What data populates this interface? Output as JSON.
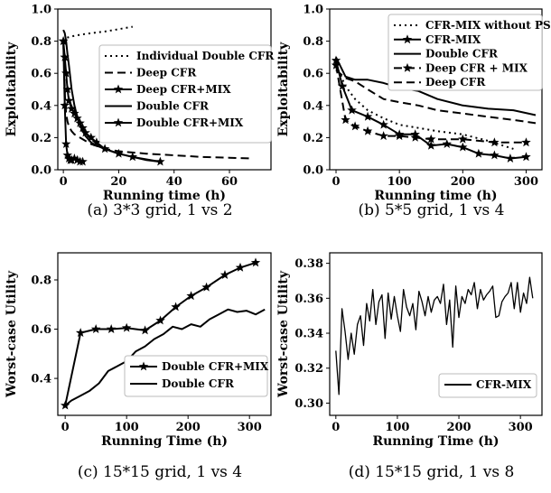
{
  "chart_data": [
    {
      "type": "line",
      "caption": "(a) 3*3 grid, 1 vs 2",
      "xlabel": "Running time (h)",
      "ylabel": "Exploitability",
      "xlim": [
        -2,
        75
      ],
      "ylim": [
        0,
        1.0
      ],
      "xticks": [
        "0",
        "20",
        "40",
        "60"
      ],
      "yticks": [
        "0.0",
        "0.2",
        "0.4",
        "0.6",
        "0.8",
        "1.0"
      ],
      "legend": "top-right",
      "series": [
        {
          "name": "Individual Double CFR",
          "style": "dotted",
          "x": [
            0,
            0.5,
            1,
            3,
            6,
            10,
            15,
            20,
            25
          ],
          "y": [
            0.8,
            0.81,
            0.82,
            0.83,
            0.84,
            0.85,
            0.86,
            0.875,
            0.89
          ]
        },
        {
          "name": "Deep CFR",
          "style": "dashed",
          "x": [
            0,
            0.3,
            0.6,
            1,
            1.5,
            2,
            3,
            4,
            6,
            8,
            10,
            15,
            20,
            30,
            40,
            50,
            60,
            68
          ],
          "y": [
            0.8,
            0.65,
            0.45,
            0.35,
            0.3,
            0.27,
            0.24,
            0.22,
            0.2,
            0.18,
            0.16,
            0.13,
            0.115,
            0.1,
            0.09,
            0.08,
            0.075,
            0.07
          ]
        },
        {
          "name": "Deep CFR+MIX",
          "style": "solid",
          "marker": "star",
          "x": [
            0,
            0.5,
            1,
            1.5,
            2,
            3,
            4,
            5,
            6,
            7,
            8,
            10,
            12,
            15,
            20,
            25,
            35
          ],
          "y": [
            0.8,
            0.7,
            0.6,
            0.5,
            0.43,
            0.38,
            0.35,
            0.32,
            0.29,
            0.26,
            0.23,
            0.2,
            0.17,
            0.13,
            0.1,
            0.08,
            0.05
          ]
        },
        {
          "name": "Double CFR",
          "style": "solid",
          "x": [
            0,
            0.5,
            1,
            1.5,
            2,
            3,
            4,
            5,
            6,
            7,
            8,
            10,
            12,
            15,
            20,
            25,
            30,
            35
          ],
          "y": [
            0.87,
            0.85,
            0.8,
            0.72,
            0.65,
            0.5,
            0.4,
            0.33,
            0.28,
            0.24,
            0.21,
            0.17,
            0.15,
            0.13,
            0.1,
            0.08,
            0.06,
            0.05
          ]
        },
        {
          "name": "Double CFR+MIX",
          "style": "solid",
          "marker": "star",
          "x": [
            0,
            0.5,
            1,
            1.5,
            2,
            2.5,
            3,
            4,
            5,
            6,
            7
          ],
          "y": [
            0.8,
            0.4,
            0.16,
            0.09,
            0.07,
            0.06,
            0.06,
            0.07,
            0.06,
            0.05,
            0.05
          ]
        }
      ]
    },
    {
      "type": "line",
      "caption": "(b) 5*5 grid, 1 vs 4",
      "xlabel": "Running time (h)",
      "ylabel": "Exploitability",
      "xlim": [
        -10,
        325
      ],
      "ylim": [
        0,
        1.0
      ],
      "xticks": [
        "0",
        "100",
        "200",
        "300"
      ],
      "yticks": [
        "0.0",
        "0.2",
        "0.4",
        "0.6",
        "0.8",
        "1.0"
      ],
      "legend": "top-right",
      "series": [
        {
          "name": "CFR-MIX without PS",
          "style": "dotted",
          "x": [
            0,
            15,
            30,
            50,
            75,
            100,
            130,
            160,
            200,
            240,
            280
          ],
          "y": [
            0.65,
            0.52,
            0.44,
            0.37,
            0.32,
            0.28,
            0.26,
            0.24,
            0.22,
            0.18,
            0.13
          ]
        },
        {
          "name": "CFR-MIX",
          "style": "solid",
          "marker": "star",
          "x": [
            0,
            10,
            25,
            50,
            75,
            100,
            125,
            150,
            175,
            200,
            225,
            250,
            275,
            300
          ],
          "y": [
            0.68,
            0.52,
            0.37,
            0.33,
            0.28,
            0.22,
            0.22,
            0.15,
            0.16,
            0.14,
            0.1,
            0.09,
            0.07,
            0.08
          ]
        },
        {
          "name": "Double CFR",
          "style": "solid",
          "x": [
            0,
            15,
            30,
            50,
            75,
            100,
            130,
            160,
            200,
            240,
            280,
            315
          ],
          "y": [
            0.7,
            0.58,
            0.56,
            0.56,
            0.54,
            0.51,
            0.49,
            0.44,
            0.4,
            0.38,
            0.37,
            0.34
          ]
        },
        {
          "name": "Deep CFR + MIX",
          "style": "dashed",
          "marker": "star",
          "x": [
            0,
            15,
            30,
            50,
            75,
            100,
            125,
            150,
            200,
            250,
            300
          ],
          "y": [
            0.65,
            0.31,
            0.27,
            0.24,
            0.21,
            0.21,
            0.2,
            0.19,
            0.19,
            0.17,
            0.17
          ]
        },
        {
          "name": "Deep CFR",
          "style": "dashed",
          "x": [
            0,
            15,
            30,
            50,
            75,
            100,
            130,
            160,
            200,
            240,
            280,
            315
          ],
          "y": [
            0.62,
            0.57,
            0.55,
            0.5,
            0.44,
            0.42,
            0.4,
            0.37,
            0.35,
            0.33,
            0.31,
            0.29
          ]
        }
      ]
    },
    {
      "type": "line",
      "caption": "(c) 15*15 grid, 1 vs 4",
      "xlabel": "Running Time (h)",
      "ylabel": "Worst-case Utility",
      "xlim": [
        -12,
        335
      ],
      "ylim": [
        0.25,
        0.91
      ],
      "xticks": [
        "0",
        "100",
        "200",
        "300"
      ],
      "yticks": [
        "0.4",
        "0.6",
        "0.8"
      ],
      "legend": "bottom-right",
      "series": [
        {
          "name": "Double CFR+MIX",
          "style": "solid",
          "marker": "star",
          "x": [
            0,
            25,
            50,
            75,
            100,
            130,
            155,
            180,
            205,
            230,
            260,
            285,
            310
          ],
          "y": [
            0.29,
            0.585,
            0.6,
            0.6,
            0.605,
            0.595,
            0.635,
            0.69,
            0.735,
            0.77,
            0.82,
            0.85,
            0.87
          ]
        },
        {
          "name": "Double CFR",
          "style": "solid",
          "x": [
            0,
            10,
            25,
            40,
            55,
            70,
            85,
            100,
            115,
            130,
            145,
            160,
            175,
            190,
            205,
            220,
            235,
            250,
            265,
            280,
            295,
            310,
            325
          ],
          "y": [
            0.29,
            0.31,
            0.33,
            0.35,
            0.38,
            0.43,
            0.45,
            0.47,
            0.51,
            0.53,
            0.56,
            0.58,
            0.61,
            0.6,
            0.62,
            0.61,
            0.64,
            0.66,
            0.68,
            0.67,
            0.675,
            0.66,
            0.68
          ]
        }
      ]
    },
    {
      "type": "line",
      "caption": "(d) 15*15 grid, 1 vs 8",
      "xlabel": "Running Time (h)",
      "ylabel": "Worst-case Utility",
      "xlim": [
        -10,
        335
      ],
      "ylim": [
        0.293,
        0.386
      ],
      "xticks": [
        "0",
        "100",
        "200",
        "300"
      ],
      "yticks": [
        "0.30",
        "0.32",
        "0.34",
        "0.36",
        "0.38"
      ],
      "legend": "bottom-right",
      "series": [
        {
          "name": "CFR-MIX",
          "style": "solid",
          "x": [
            0,
            5,
            10,
            15,
            20,
            25,
            30,
            35,
            40,
            45,
            50,
            55,
            60,
            65,
            70,
            75,
            80,
            85,
            90,
            95,
            100,
            105,
            110,
            115,
            120,
            125,
            130,
            135,
            140,
            145,
            150,
            155,
            160,
            165,
            170,
            175,
            180,
            185,
            190,
            195,
            200,
            205,
            210,
            215,
            220,
            225,
            230,
            235,
            240,
            245,
            250,
            255,
            260,
            265,
            270,
            275,
            280,
            285,
            290,
            295,
            300,
            305,
            310,
            315,
            320
          ],
          "y": [
            0.33,
            0.305,
            0.354,
            0.341,
            0.325,
            0.34,
            0.328,
            0.345,
            0.35,
            0.333,
            0.357,
            0.347,
            0.365,
            0.345,
            0.358,
            0.362,
            0.337,
            0.363,
            0.348,
            0.361,
            0.35,
            0.341,
            0.365,
            0.355,
            0.35,
            0.357,
            0.342,
            0.364,
            0.358,
            0.35,
            0.361,
            0.352,
            0.359,
            0.361,
            0.357,
            0.368,
            0.345,
            0.359,
            0.332,
            0.367,
            0.349,
            0.361,
            0.357,
            0.365,
            0.362,
            0.369,
            0.354,
            0.365,
            0.359,
            0.362,
            0.364,
            0.367,
            0.349,
            0.35,
            0.358,
            0.361,
            0.363,
            0.369,
            0.354,
            0.369,
            0.352,
            0.363,
            0.357,
            0.372,
            0.36
          ]
        }
      ]
    }
  ]
}
